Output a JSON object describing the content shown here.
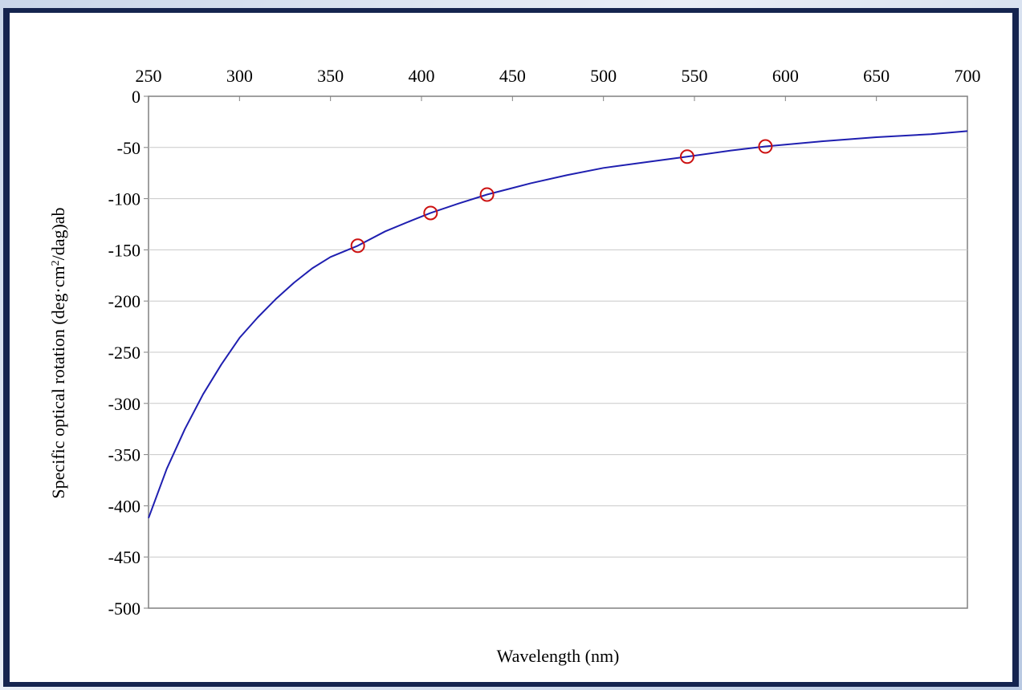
{
  "chart_data": {
    "type": "line",
    "xlabel": "Wavelength (nm)",
    "ylabel_main": "Specific optical rotation (deg·cm",
    "ylabel_sup": "2",
    "ylabel_tail": "/dag)ab",
    "x_axis_position": "top",
    "xlim": [
      250,
      700
    ],
    "ylim": [
      -500,
      0
    ],
    "x_ticks": [
      250,
      300,
      350,
      400,
      450,
      500,
      550,
      600,
      650,
      700
    ],
    "y_ticks": [
      0,
      -50,
      -100,
      -150,
      -200,
      -250,
      -300,
      -350,
      -400,
      -450,
      -500
    ],
    "grid": {
      "horizontal": true,
      "vertical": false
    },
    "legend": "none",
    "series": [
      {
        "kind": "curve",
        "color": "#1f1fb0",
        "x": [
          250,
          260,
          270,
          280,
          290,
          300,
          310,
          320,
          330,
          340,
          350,
          365,
          380,
          395,
          405,
          420,
          436,
          460,
          480,
          500,
          525,
          546,
          570,
          589,
          620,
          650,
          680,
          700
        ],
        "y": [
          -412,
          -364,
          -325,
          -291,
          -262,
          -236,
          -216,
          -198,
          -182,
          -168,
          -157,
          -146,
          -132,
          -121,
          -114,
          -105,
          -96,
          -85,
          -77,
          -70,
          -64,
          -59,
          -53,
          -49,
          -44,
          -40,
          -37,
          -34
        ]
      },
      {
        "kind": "markers",
        "color": "#cc1111",
        "x": [
          365,
          405,
          436,
          546,
          589
        ],
        "y": [
          -146,
          -114,
          -96,
          -59,
          -49
        ]
      }
    ]
  }
}
